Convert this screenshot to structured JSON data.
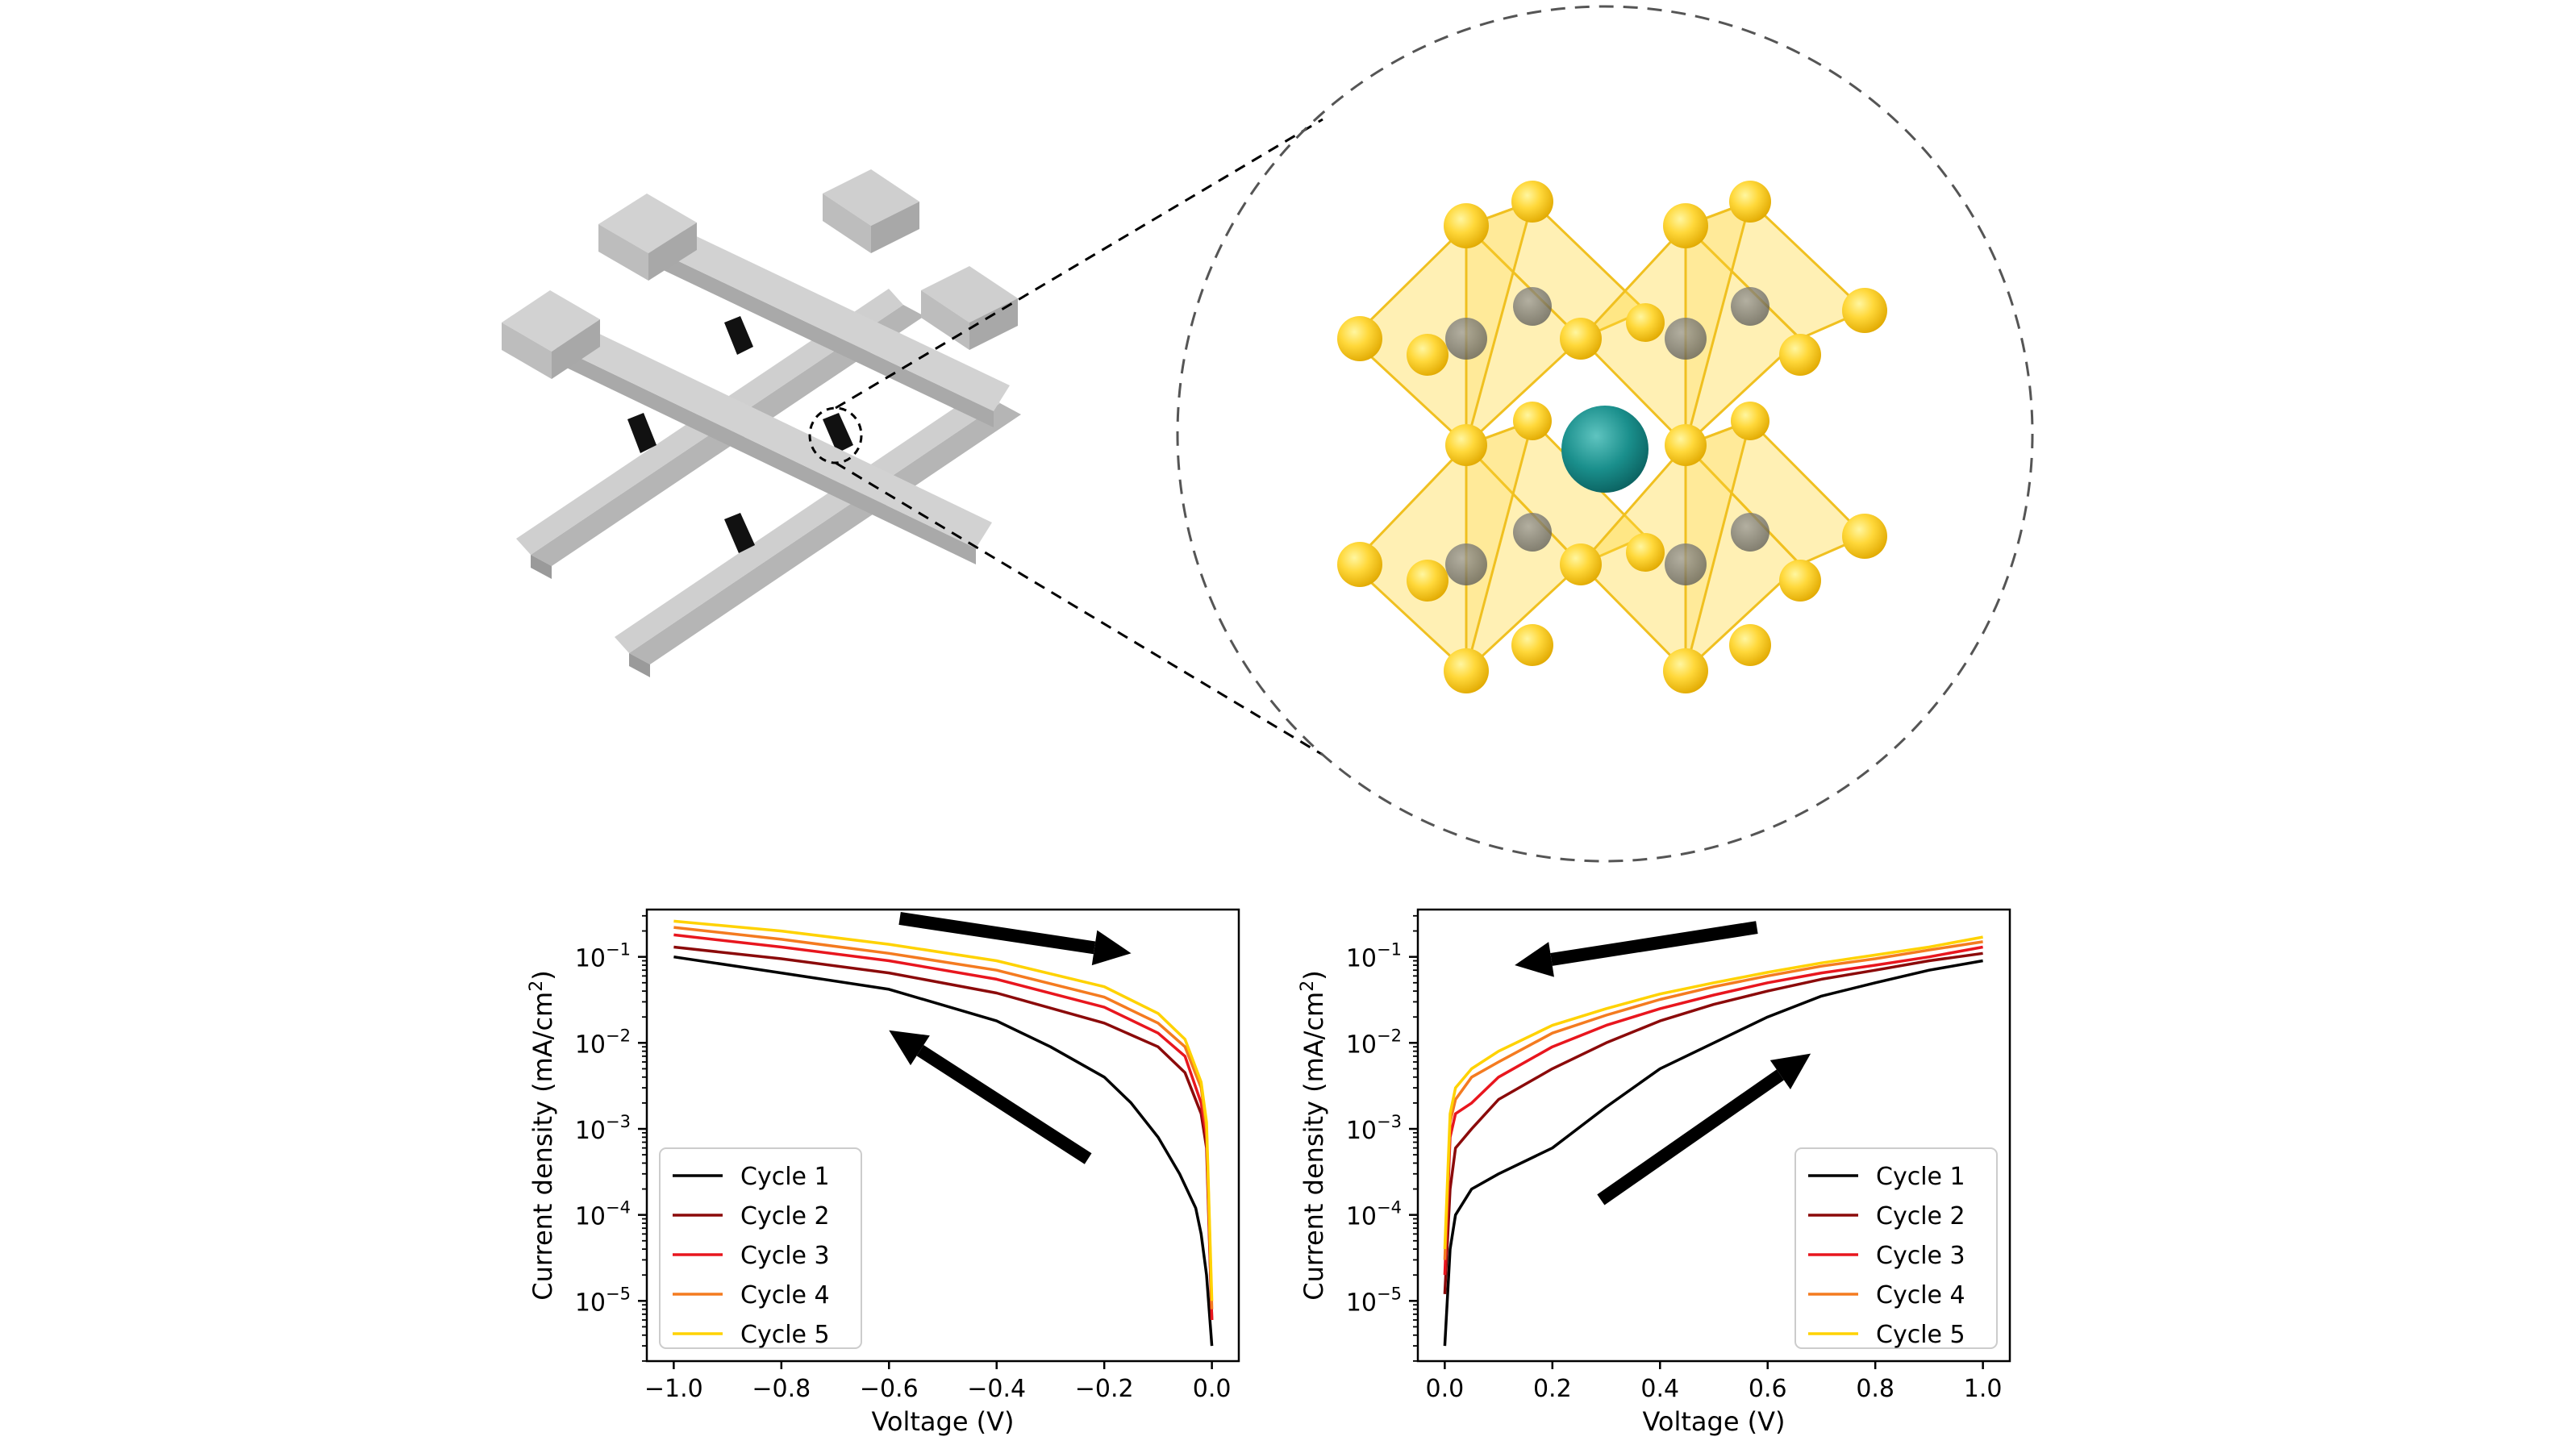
{
  "legend_labels": [
    "Cycle 1",
    "Cycle 2",
    "Cycle 3",
    "Cycle 4",
    "Cycle 5"
  ],
  "cycle_colors": [
    "#000000",
    "#8b0a0a",
    "#e8161e",
    "#f47b20",
    "#ffd200"
  ],
  "chart_data": [
    {
      "type": "line",
      "xlabel": "Voltage (V)",
      "ylabel_main": "Current density (mA/cm",
      "ylabel_sup": "2",
      "ylabel_close": ")",
      "xlim": [
        -1.05,
        0.05
      ],
      "ylim_log10": [
        -5.7,
        -0.45
      ],
      "y_scale": "log",
      "xticks": [
        -1.0,
        -0.8,
        -0.6,
        -0.4,
        -0.2,
        0.0
      ],
      "xtick_labels": [
        "−1.0",
        "−0.8",
        "−0.6",
        "−0.4",
        "−0.2",
        "0.0"
      ],
      "ytick_exponents": [
        -5,
        -4,
        -3,
        -2,
        -1
      ],
      "ytick_exp_labels": [
        "−5",
        "−4",
        "−3",
        "−2",
        "−1"
      ],
      "ytick_base": "10",
      "legend_position": "lower-left",
      "arrows": [
        {
          "from": [
            -0.58,
            0.28
          ],
          "to": [
            -0.15,
            0.11
          ]
        },
        {
          "from": [
            -0.23,
            0.00045
          ],
          "to": [
            -0.6,
            0.014
          ]
        }
      ],
      "series": [
        {
          "name": "Cycle 1",
          "x": [
            -1.0,
            -0.8,
            -0.6,
            -0.4,
            -0.3,
            -0.2,
            -0.15,
            -0.1,
            -0.06,
            -0.03,
            -0.02,
            -0.01,
            0.0
          ],
          "y": [
            0.1,
            0.065,
            0.042,
            0.018,
            0.009,
            0.004,
            0.002,
            0.0008,
            0.0003,
            0.00012,
            6e-05,
            2e-05,
            3e-06
          ]
        },
        {
          "name": "Cycle 2",
          "x": [
            -1.0,
            -0.8,
            -0.6,
            -0.4,
            -0.2,
            -0.1,
            -0.05,
            -0.02,
            -0.01,
            0.0
          ],
          "y": [
            0.13,
            0.095,
            0.065,
            0.038,
            0.017,
            0.009,
            0.0045,
            0.0015,
            0.0006,
            6e-06
          ]
        },
        {
          "name": "Cycle 3",
          "x": [
            -1.0,
            -0.8,
            -0.6,
            -0.4,
            -0.2,
            -0.1,
            -0.05,
            -0.02,
            -0.01,
            0.0
          ],
          "y": [
            0.18,
            0.13,
            0.09,
            0.055,
            0.026,
            0.013,
            0.007,
            0.002,
            0.0008,
            6e-06
          ]
        },
        {
          "name": "Cycle 4",
          "x": [
            -1.0,
            -0.8,
            -0.6,
            -0.4,
            -0.2,
            -0.1,
            -0.05,
            -0.02,
            -0.01,
            0.0
          ],
          "y": [
            0.22,
            0.16,
            0.11,
            0.07,
            0.034,
            0.017,
            0.009,
            0.003,
            0.001,
            8e-06
          ]
        },
        {
          "name": "Cycle 5",
          "x": [
            -1.0,
            -0.8,
            -0.6,
            -0.4,
            -0.2,
            -0.1,
            -0.05,
            -0.02,
            -0.01,
            0.0
          ],
          "y": [
            0.26,
            0.2,
            0.14,
            0.09,
            0.045,
            0.022,
            0.011,
            0.0035,
            0.0012,
            1e-05
          ]
        }
      ]
    },
    {
      "type": "line",
      "xlabel": "Voltage (V)",
      "ylabel_main": "Current density (mA/cm",
      "ylabel_sup": "2",
      "ylabel_close": ")",
      "xlim": [
        -0.05,
        1.05
      ],
      "ylim_log10": [
        -5.7,
        -0.45
      ],
      "y_scale": "log",
      "xticks": [
        0.0,
        0.2,
        0.4,
        0.6,
        0.8,
        1.0
      ],
      "xtick_labels": [
        "0.0",
        "0.2",
        "0.4",
        "0.6",
        "0.8",
        "1.0"
      ],
      "ytick_exponents": [
        -5,
        -4,
        -3,
        -2,
        -1
      ],
      "ytick_exp_labels": [
        "−5",
        "−4",
        "−3",
        "−2",
        "−1"
      ],
      "ytick_base": "10",
      "legend_position": "lower-right",
      "arrows": [
        {
          "from": [
            0.58,
            0.22
          ],
          "to": [
            0.13,
            0.08
          ]
        },
        {
          "from": [
            0.29,
            0.00015
          ],
          "to": [
            0.68,
            0.0075
          ]
        }
      ],
      "series": [
        {
          "name": "Cycle 1",
          "x": [
            0.0,
            0.01,
            0.02,
            0.05,
            0.1,
            0.2,
            0.3,
            0.4,
            0.5,
            0.6,
            0.7,
            0.8,
            0.9,
            1.0
          ],
          "y": [
            3e-06,
            4e-05,
            0.0001,
            0.0002,
            0.0003,
            0.0006,
            0.0018,
            0.005,
            0.01,
            0.02,
            0.035,
            0.05,
            0.07,
            0.09
          ]
        },
        {
          "name": "Cycle 2",
          "x": [
            0.0,
            0.01,
            0.02,
            0.05,
            0.1,
            0.2,
            0.3,
            0.4,
            0.5,
            0.6,
            0.7,
            0.8,
            0.9,
            1.0
          ],
          "y": [
            1.2e-05,
            0.0002,
            0.0006,
            0.001,
            0.0022,
            0.005,
            0.01,
            0.018,
            0.028,
            0.04,
            0.055,
            0.07,
            0.09,
            0.11
          ]
        },
        {
          "name": "Cycle 3",
          "x": [
            0.0,
            0.01,
            0.02,
            0.05,
            0.1,
            0.2,
            0.3,
            0.4,
            0.5,
            0.6,
            0.7,
            0.8,
            0.9,
            1.0
          ],
          "y": [
            2e-05,
            0.0008,
            0.0015,
            0.002,
            0.004,
            0.009,
            0.016,
            0.025,
            0.036,
            0.05,
            0.065,
            0.08,
            0.1,
            0.13
          ]
        },
        {
          "name": "Cycle 4",
          "x": [
            0.0,
            0.01,
            0.02,
            0.05,
            0.1,
            0.2,
            0.3,
            0.4,
            0.5,
            0.6,
            0.7,
            0.8,
            0.9,
            1.0
          ],
          "y": [
            3e-05,
            0.0012,
            0.0022,
            0.004,
            0.006,
            0.013,
            0.021,
            0.032,
            0.045,
            0.06,
            0.078,
            0.095,
            0.12,
            0.15
          ]
        },
        {
          "name": "Cycle 5",
          "x": [
            0.0,
            0.01,
            0.02,
            0.05,
            0.1,
            0.2,
            0.3,
            0.4,
            0.5,
            0.6,
            0.7,
            0.8,
            0.9,
            1.0
          ],
          "y": [
            4e-05,
            0.0015,
            0.003,
            0.005,
            0.008,
            0.016,
            0.025,
            0.037,
            0.05,
            0.066,
            0.085,
            0.105,
            0.13,
            0.17
          ]
        }
      ]
    }
  ]
}
